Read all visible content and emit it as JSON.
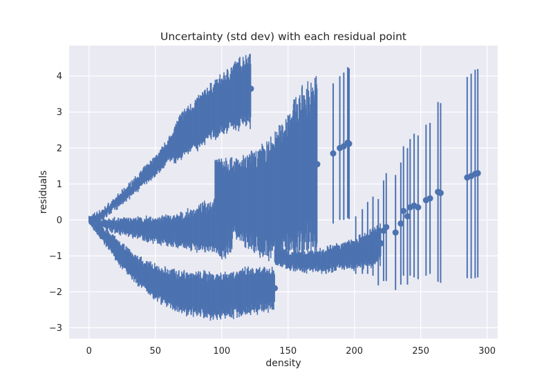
{
  "chart_data": {
    "type": "scatter",
    "title": "Uncertainty (std dev) with each residual point",
    "xlabel": "density",
    "ylabel": "residuals",
    "xlim": [
      -15,
      308
    ],
    "ylim": [
      -3.3,
      4.85
    ],
    "xticks": [
      0,
      50,
      100,
      150,
      200,
      250,
      300
    ],
    "yticks": [
      -3,
      -2,
      -1,
      0,
      1,
      2,
      3,
      4
    ],
    "grid": true,
    "legend": "none",
    "colors": {
      "series": "#4c72b0",
      "background": "#eaeaf2",
      "grid": "#ffffff"
    },
    "marker": "circle",
    "errorbars": "vertical (std dev)",
    "bands": [
      {
        "x": [
          0,
          10,
          20,
          30,
          40,
          50,
          60,
          65,
          70,
          80,
          90,
          100,
          110,
          122
        ],
        "y": [
          0,
          0.15,
          0.45,
          0.8,
          1.15,
          1.5,
          1.95,
          2.15,
          2.35,
          2.65,
          2.95,
          3.2,
          3.45,
          3.65
        ],
        "std": [
          0.05,
          0.1,
          0.12,
          0.15,
          0.18,
          0.22,
          0.25,
          0.45,
          0.55,
          0.6,
          0.65,
          0.7,
          0.8,
          0.9
        ]
      },
      {
        "x": [
          0,
          10,
          20,
          30,
          40,
          50,
          60,
          70,
          80,
          90,
          100,
          108
        ],
        "y": [
          0,
          -0.1,
          -0.15,
          -0.2,
          -0.25,
          -0.28,
          -0.3,
          -0.3,
          -0.25,
          -0.2,
          -0.15,
          0.1
        ],
        "std": [
          0.05,
          0.1,
          0.15,
          0.2,
          0.25,
          0.3,
          0.35,
          0.4,
          0.5,
          0.6,
          0.8,
          0.9
        ]
      },
      {
        "x": [
          0,
          10,
          20,
          30,
          40,
          50,
          60,
          70,
          80,
          90,
          100,
          110,
          120,
          130,
          140
        ],
        "y": [
          0,
          -0.4,
          -0.8,
          -1.2,
          -1.5,
          -1.75,
          -1.9,
          -2.0,
          -2.05,
          -2.1,
          -2.1,
          -2.05,
          -2.0,
          -1.95,
          -1.9
        ],
        "std": [
          0.05,
          0.15,
          0.25,
          0.3,
          0.35,
          0.4,
          0.45,
          0.5,
          0.5,
          0.55,
          0.55,
          0.55,
          0.55,
          0.5,
          0.5
        ]
      },
      {
        "x": [
          95,
          105,
          115,
          125,
          135,
          145,
          150,
          160,
          172
        ],
        "y": [
          0.95,
          0.7,
          0.55,
          0.5,
          0.55,
          0.8,
          1.0,
          1.3,
          1.55
        ],
        "std": [
          0.7,
          0.9,
          1.0,
          1.2,
          1.4,
          1.6,
          1.8,
          2.0,
          2.1
        ]
      },
      {
        "x": [
          140,
          150,
          160,
          170,
          180,
          190,
          200,
          210,
          215,
          220
        ],
        "y": [
          -1.0,
          -1.1,
          -1.15,
          -1.15,
          -1.1,
          -1.0,
          -0.95,
          -0.85,
          -0.75,
          -0.65
        ],
        "std": [
          0.2,
          0.2,
          0.22,
          0.25,
          0.28,
          0.3,
          0.35,
          0.4,
          0.45,
          0.5
        ]
      }
    ],
    "points": [
      {
        "x": 184,
        "y": 1.85,
        "std": 1.95
      },
      {
        "x": 189,
        "y": 2.0,
        "std": 2.0
      },
      {
        "x": 192,
        "y": 2.05,
        "std": 2.05
      },
      {
        "x": 195,
        "y": 2.15,
        "std": 2.1
      },
      {
        "x": 196,
        "y": 2.12,
        "std": 2.1
      },
      {
        "x": 201,
        "y": -0.7,
        "std": 0.8
      },
      {
        "x": 206,
        "y": -0.6,
        "std": 0.9
      },
      {
        "x": 210,
        "y": -0.5,
        "std": 1.0
      },
      {
        "x": 214,
        "y": -0.45,
        "std": 1.1
      },
      {
        "x": 218,
        "y": -0.62,
        "std": 1.2
      },
      {
        "x": 222,
        "y": -0.3,
        "std": 1.4
      },
      {
        "x": 224,
        "y": -0.2,
        "std": 1.5
      },
      {
        "x": 231,
        "y": -0.35,
        "std": 1.6
      },
      {
        "x": 235,
        "y": -0.1,
        "std": 1.7
      },
      {
        "x": 237,
        "y": 0.25,
        "std": 1.8
      },
      {
        "x": 240,
        "y": 0.1,
        "std": 1.9
      },
      {
        "x": 242,
        "y": 0.35,
        "std": 1.9
      },
      {
        "x": 245,
        "y": 0.4,
        "std": 2.0
      },
      {
        "x": 248,
        "y": 0.35,
        "std": 2.0
      },
      {
        "x": 254,
        "y": 0.55,
        "std": 2.1
      },
      {
        "x": 257,
        "y": 0.6,
        "std": 2.1
      },
      {
        "x": 263,
        "y": 0.78,
        "std": 2.5
      },
      {
        "x": 265,
        "y": 0.75,
        "std": 2.5
      },
      {
        "x": 285,
        "y": 1.18,
        "std": 2.8
      },
      {
        "x": 288,
        "y": 1.22,
        "std": 2.85
      },
      {
        "x": 291,
        "y": 1.28,
        "std": 2.9
      },
      {
        "x": 293,
        "y": 1.3,
        "std": 2.9
      }
    ]
  }
}
